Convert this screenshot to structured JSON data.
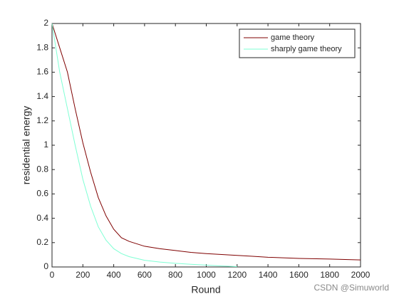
{
  "chart_data": {
    "type": "line",
    "x": [
      0,
      50,
      100,
      150,
      200,
      250,
      300,
      350,
      400,
      450,
      500,
      600,
      700,
      800,
      900,
      1000,
      1100,
      1200,
      1300,
      1400,
      1600,
      1800,
      2000
    ],
    "series": [
      {
        "name": "game theory",
        "color": "#7f0000",
        "values": [
          2.0,
          1.8,
          1.6,
          1.3,
          1.02,
          0.78,
          0.57,
          0.42,
          0.31,
          0.24,
          0.21,
          0.17,
          0.15,
          0.135,
          0.12,
          0.11,
          0.102,
          0.095,
          0.088,
          0.08,
          0.07,
          0.065,
          0.058
        ]
      },
      {
        "name": "sharply game theory",
        "color": "#7fffd4",
        "values": [
          2.0,
          1.6,
          1.3,
          1.0,
          0.72,
          0.5,
          0.33,
          0.22,
          0.15,
          0.11,
          0.085,
          0.055,
          0.04,
          0.03,
          0.022,
          0.015,
          0.008,
          0.003,
          null,
          null,
          null,
          null,
          null
        ]
      }
    ],
    "xlabel": "Round",
    "ylabel": "residential energy",
    "xlim": [
      0,
      2000
    ],
    "ylim": [
      0,
      2
    ],
    "xticks": [
      0,
      200,
      400,
      600,
      800,
      1000,
      1200,
      1400,
      1600,
      1800,
      2000
    ],
    "yticks": [
      0,
      0.2,
      0.4,
      0.6,
      0.8,
      1,
      1.2,
      1.4,
      1.6,
      1.8,
      2
    ],
    "legend": "upper right",
    "watermark": "CSDN @Simuworld"
  }
}
